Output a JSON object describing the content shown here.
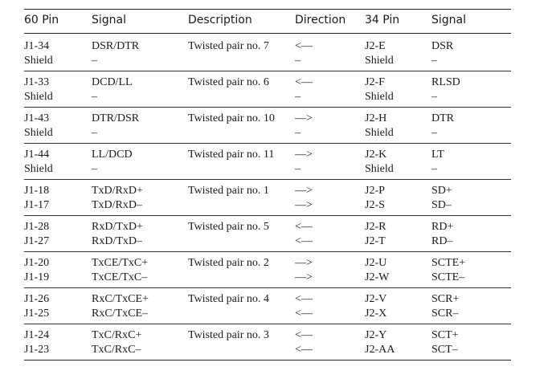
{
  "headers": {
    "pin60": "60 Pin",
    "signal60": "Signal",
    "description": "Description",
    "direction": "Direction",
    "pin34": "34 Pin",
    "signal34": "Signal"
  },
  "groups": [
    {
      "rows": [
        {
          "pin60": "J1-34",
          "signal60": "DSR/DTR",
          "description": "Twisted pair no. 7",
          "direction": "<—",
          "pin34": "J2-E",
          "signal34": "DSR"
        },
        {
          "pin60": "Shield",
          "signal60": "–",
          "description": "",
          "direction": "–",
          "pin34": "Shield",
          "signal34": "–"
        }
      ]
    },
    {
      "rows": [
        {
          "pin60": "J1-33",
          "signal60": "DCD/LL",
          "description": "Twisted pair no. 6",
          "direction": "<—",
          "pin34": "J2-F",
          "signal34": "RLSD"
        },
        {
          "pin60": "Shield",
          "signal60": "–",
          "description": "",
          "direction": "–",
          "pin34": "Shield",
          "signal34": "–"
        }
      ]
    },
    {
      "rows": [
        {
          "pin60": "J1-43",
          "signal60": "DTR/DSR",
          "description": "Twisted pair no. 10",
          "direction": "—>",
          "pin34": "J2-H",
          "signal34": "DTR"
        },
        {
          "pin60": "Shield",
          "signal60": "–",
          "description": "",
          "direction": "–",
          "pin34": "Shield",
          "signal34": "–"
        }
      ]
    },
    {
      "rows": [
        {
          "pin60": "J1-44",
          "signal60": "LL/DCD",
          "description": "Twisted pair no. 11",
          "direction": "—>",
          "pin34": "J2-K",
          "signal34": "LT"
        },
        {
          "pin60": "Shield",
          "signal60": "–",
          "description": "",
          "direction": "–",
          "pin34": "Shield",
          "signal34": "–"
        }
      ]
    },
    {
      "rows": [
        {
          "pin60": "J1-18",
          "signal60": "TxD/RxD+",
          "description": "Twisted pair no. 1",
          "direction": "—>",
          "pin34": "J2-P",
          "signal34": "SD+"
        },
        {
          "pin60": "J1-17",
          "signal60": "TxD/RxD–",
          "description": "",
          "direction": "—>",
          "pin34": "J2-S",
          "signal34": "SD–"
        }
      ]
    },
    {
      "rows": [
        {
          "pin60": "J1-28",
          "signal60": "RxD/TxD+",
          "description": "Twisted pair no. 5",
          "direction": "<—",
          "pin34": "J2-R",
          "signal34": "RD+"
        },
        {
          "pin60": "J1-27",
          "signal60": "RxD/TxD–",
          "description": "",
          "direction": "<—",
          "pin34": "J2-T",
          "signal34": "RD–"
        }
      ]
    },
    {
      "rows": [
        {
          "pin60": "J1-20",
          "signal60": "TxCE/TxC+",
          "description": "Twisted pair no. 2",
          "direction": "—>",
          "pin34": "J2-U",
          "signal34": "SCTE+"
        },
        {
          "pin60": "J1-19",
          "signal60": "TxCE/TxC–",
          "description": "",
          "direction": "—>",
          "pin34": "J2-W",
          "signal34": "SCTE–"
        }
      ]
    },
    {
      "rows": [
        {
          "pin60": "J1-26",
          "signal60": "RxC/TxCE+",
          "description": "Twisted pair no. 4",
          "direction": "<—",
          "pin34": "J2-V",
          "signal34": "SCR+"
        },
        {
          "pin60": "J1-25",
          "signal60": "RxC/TxCE–",
          "description": "",
          "direction": "<—",
          "pin34": "J2-X",
          "signal34": "SCR–"
        }
      ]
    },
    {
      "rows": [
        {
          "pin60": "J1-24",
          "signal60": "TxC/RxC+",
          "description": "Twisted pair no. 3",
          "direction": "<—",
          "pin34": "J2-Y",
          "signal34": "SCT+"
        },
        {
          "pin60": "J1-23",
          "signal60": "TxC/RxC–",
          "description": "",
          "direction": "<—",
          "pin34": "J2-AA",
          "signal34": "SCT–"
        }
      ]
    }
  ]
}
